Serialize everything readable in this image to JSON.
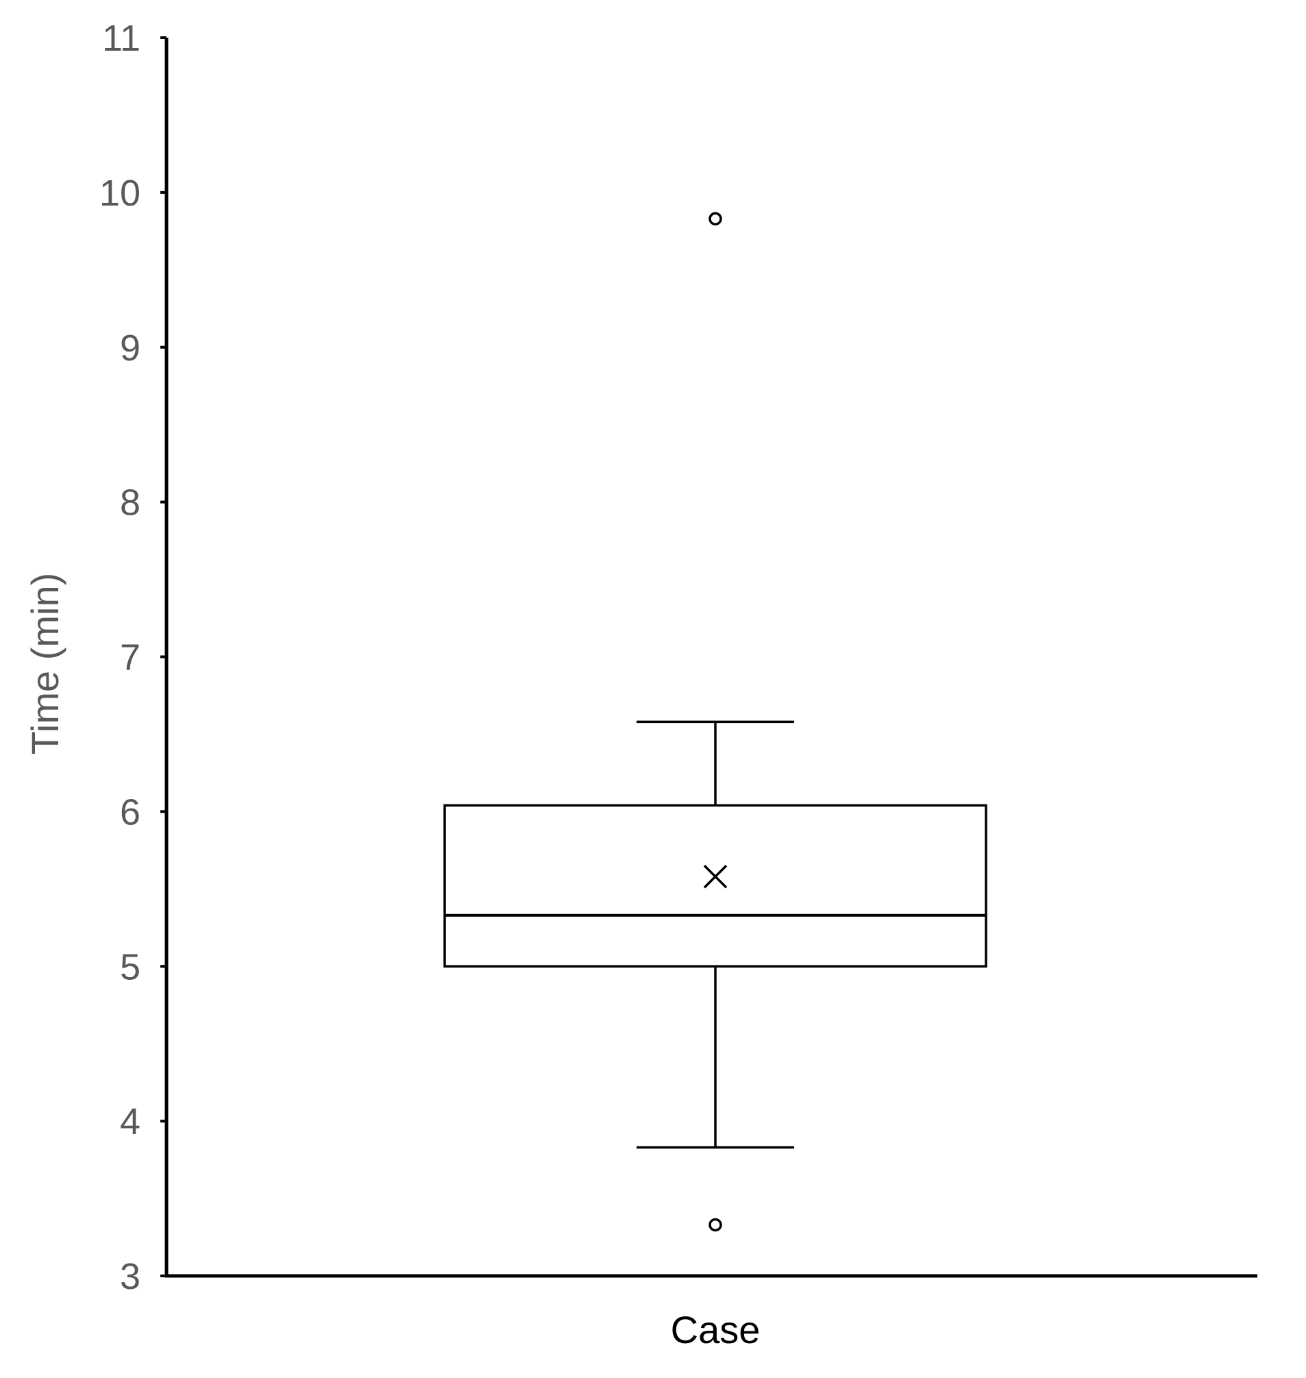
{
  "chart_data": {
    "type": "box",
    "ylabel": "Time (min)",
    "ylim": [
      3,
      11
    ],
    "yticks": [
      3,
      4,
      5,
      6,
      7,
      8,
      9,
      10,
      11
    ],
    "categories": [
      "Case"
    ],
    "grid": false,
    "series": [
      {
        "category": "Case",
        "whisker_low": 3.83,
        "q1": 5.0,
        "median": 5.33,
        "q3": 6.04,
        "whisker_high": 6.58,
        "mean": 5.58,
        "outliers": [
          9.83,
          3.33
        ]
      }
    ]
  }
}
